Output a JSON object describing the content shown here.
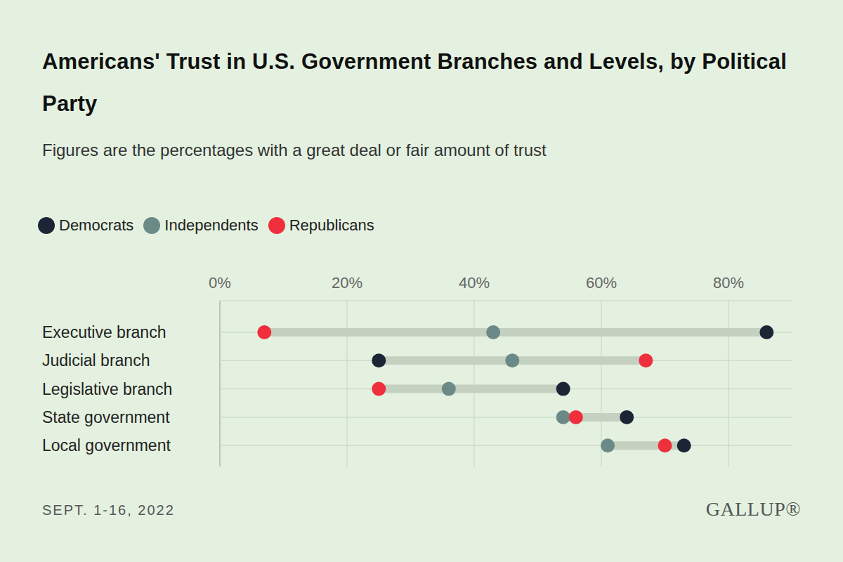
{
  "chart_data": {
    "type": "dot",
    "title": "Americans' Trust in U.S. Government Branches and Levels, by Political Party",
    "subtitle": "Figures are the percentages with a great deal or fair amount of trust",
    "note": "SEPT. 1-16, 2022",
    "source": "GALLUP®",
    "orientation": "horizontal",
    "grid": true,
    "legend": "top-left",
    "categories": [
      "Executive branch",
      "Judicial branch",
      "Legislative branch",
      "State government",
      "Local government"
    ],
    "series": [
      {
        "name": "Democrats",
        "color": "#1c2536",
        "values": [
          86,
          25,
          54,
          64,
          73
        ]
      },
      {
        "name": "Independents",
        "color": "#6b8a87",
        "values": [
          43,
          46,
          36,
          54,
          61
        ]
      },
      {
        "name": "Republicans",
        "color": "#ef2f3c",
        "values": [
          7,
          67,
          25,
          56,
          70
        ]
      }
    ],
    "xlim": [
      0,
      90
    ],
    "xticks": [
      {
        "value": 0,
        "label": "0%"
      },
      {
        "value": 20,
        "label": "20%"
      },
      {
        "value": 40,
        "label": "40%"
      },
      {
        "value": 60,
        "label": "60%"
      },
      {
        "value": 80,
        "label": "80%"
      }
    ]
  }
}
